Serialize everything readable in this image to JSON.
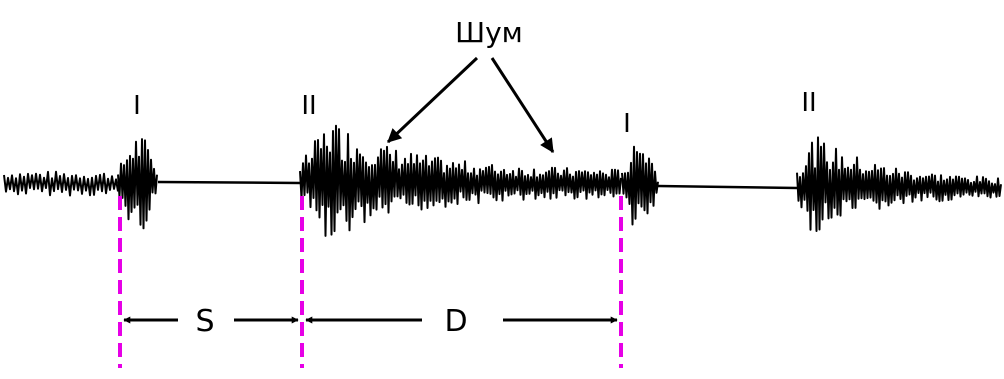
{
  "labels": {
    "noise": "Шум",
    "sound_1_first": "I",
    "sound_2_first": "II",
    "sound_1_second": "I",
    "sound_2_second": "II",
    "systole": "S",
    "diastole": "D"
  },
  "colors": {
    "trace": "#000000",
    "marker_lines": "#e600e6",
    "background": "#ffffff"
  }
}
